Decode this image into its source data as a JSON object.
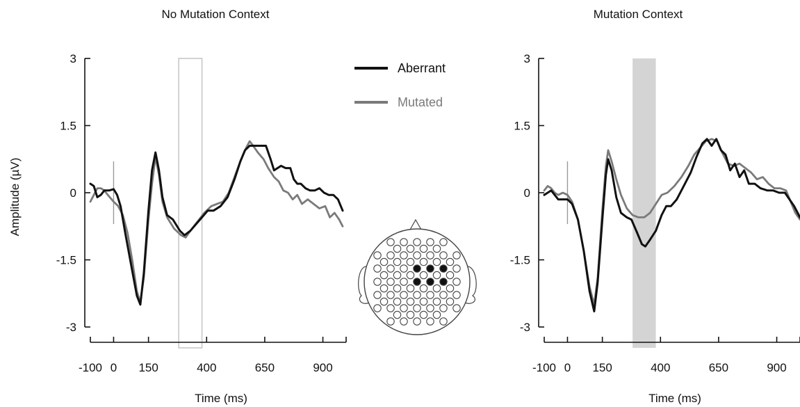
{
  "figure": {
    "ylabel": "Amplitude (µV)",
    "legend": [
      {
        "name": "Aberrant",
        "color": "#111111"
      },
      {
        "name": "Mutated",
        "color": "#7a7a7a"
      }
    ]
  },
  "chart_data": [
    {
      "type": "line",
      "title": "No Mutation Context",
      "xlabel": "Time (ms)",
      "ylabel": "Amplitude (µV)",
      "xlim": [
        -100,
        1000
      ],
      "ylim": [
        -3,
        3
      ],
      "xticks": [
        -100,
        0,
        150,
        400,
        650,
        900
      ],
      "yticks": [
        3,
        1.5,
        0,
        -1.5,
        -3
      ],
      "window": {
        "x0": 280,
        "x1": 380,
        "style": "outline"
      },
      "series": [
        {
          "name": "Aberrant",
          "color": "#111111",
          "points": [
            [
              -100,
              0.2
            ],
            [
              -85,
              0.15
            ],
            [
              -70,
              -0.1
            ],
            [
              -55,
              -0.05
            ],
            [
              -40,
              0.05
            ],
            [
              -20,
              0.05
            ],
            [
              0,
              0.08
            ],
            [
              15,
              -0.05
            ],
            [
              30,
              -0.3
            ],
            [
              50,
              -0.9
            ],
            [
              75,
              -1.6
            ],
            [
              100,
              -2.3
            ],
            [
              115,
              -2.5
            ],
            [
              130,
              -1.8
            ],
            [
              150,
              -0.4
            ],
            [
              165,
              0.5
            ],
            [
              180,
              0.9
            ],
            [
              195,
              0.5
            ],
            [
              210,
              -0.1
            ],
            [
              230,
              -0.5
            ],
            [
              255,
              -0.6
            ],
            [
              285,
              -0.85
            ],
            [
              305,
              -0.95
            ],
            [
              330,
              -0.85
            ],
            [
              355,
              -0.7
            ],
            [
              380,
              -0.55
            ],
            [
              405,
              -0.4
            ],
            [
              430,
              -0.4
            ],
            [
              460,
              -0.3
            ],
            [
              490,
              -0.1
            ],
            [
              520,
              0.3
            ],
            [
              545,
              0.7
            ],
            [
              565,
              0.95
            ],
            [
              585,
              1.05
            ],
            [
              610,
              1.05
            ],
            [
              635,
              1.05
            ],
            [
              655,
              1.05
            ],
            [
              675,
              0.75
            ],
            [
              690,
              0.5
            ],
            [
              705,
              0.55
            ],
            [
              720,
              0.6
            ],
            [
              740,
              0.55
            ],
            [
              760,
              0.55
            ],
            [
              775,
              0.3
            ],
            [
              790,
              0.2
            ],
            [
              805,
              0.2
            ],
            [
              825,
              0.1
            ],
            [
              845,
              0.05
            ],
            [
              865,
              0.05
            ],
            [
              885,
              0.1
            ],
            [
              905,
              0.0
            ],
            [
              925,
              -0.05
            ],
            [
              945,
              -0.05
            ],
            [
              965,
              -0.15
            ],
            [
              985,
              -0.4
            ]
          ]
        },
        {
          "name": "Mutated",
          "color": "#7a7a7a",
          "points": [
            [
              -100,
              -0.2
            ],
            [
              -85,
              -0.05
            ],
            [
              -70,
              0.1
            ],
            [
              -55,
              0.1
            ],
            [
              -40,
              0.05
            ],
            [
              -25,
              -0.05
            ],
            [
              0,
              -0.2
            ],
            [
              20,
              -0.3
            ],
            [
              40,
              -0.5
            ],
            [
              60,
              -0.9
            ],
            [
              80,
              -1.5
            ],
            [
              100,
              -2.2
            ],
            [
              115,
              -2.45
            ],
            [
              130,
              -1.9
            ],
            [
              150,
              -0.6
            ],
            [
              165,
              0.2
            ],
            [
              180,
              0.8
            ],
            [
              195,
              0.4
            ],
            [
              210,
              -0.2
            ],
            [
              230,
              -0.55
            ],
            [
              260,
              -0.8
            ],
            [
              290,
              -0.95
            ],
            [
              310,
              -1.0
            ],
            [
              330,
              -0.85
            ],
            [
              360,
              -0.65
            ],
            [
              390,
              -0.45
            ],
            [
              420,
              -0.3
            ],
            [
              445,
              -0.25
            ],
            [
              470,
              -0.2
            ],
            [
              495,
              0.0
            ],
            [
              520,
              0.35
            ],
            [
              545,
              0.7
            ],
            [
              570,
              1.0
            ],
            [
              585,
              1.15
            ],
            [
              600,
              1.05
            ],
            [
              620,
              0.9
            ],
            [
              645,
              0.75
            ],
            [
              665,
              0.55
            ],
            [
              690,
              0.35
            ],
            [
              710,
              0.25
            ],
            [
              730,
              0.05
            ],
            [
              750,
              0.0
            ],
            [
              770,
              -0.15
            ],
            [
              790,
              -0.05
            ],
            [
              810,
              -0.25
            ],
            [
              835,
              -0.15
            ],
            [
              860,
              -0.25
            ],
            [
              885,
              -0.35
            ],
            [
              910,
              -0.3
            ],
            [
              930,
              -0.55
            ],
            [
              950,
              -0.45
            ],
            [
              970,
              -0.6
            ],
            [
              985,
              -0.75
            ]
          ]
        }
      ]
    },
    {
      "type": "line",
      "title": "Mutation Context",
      "xlabel": "Time (ms)",
      "ylabel": "",
      "xlim": [
        -100,
        1000
      ],
      "ylim": [
        -3,
        3
      ],
      "xticks": [
        -100,
        0,
        150,
        400,
        650,
        900
      ],
      "yticks": [
        3,
        1.5,
        0,
        -1.5,
        -3
      ],
      "window": {
        "x0": 280,
        "x1": 380,
        "style": "filled"
      },
      "series": [
        {
          "name": "Aberrant",
          "color": "#111111",
          "points": [
            [
              -100,
              -0.05
            ],
            [
              -85,
              0.0
            ],
            [
              -70,
              0.05
            ],
            [
              -55,
              -0.05
            ],
            [
              -40,
              -0.15
            ],
            [
              -20,
              -0.15
            ],
            [
              0,
              -0.15
            ],
            [
              20,
              -0.25
            ],
            [
              45,
              -0.6
            ],
            [
              70,
              -1.3
            ],
            [
              95,
              -2.2
            ],
            [
              115,
              -2.65
            ],
            [
              130,
              -2.0
            ],
            [
              150,
              -0.6
            ],
            [
              165,
              0.4
            ],
            [
              175,
              0.75
            ],
            [
              190,
              0.5
            ],
            [
              210,
              -0.1
            ],
            [
              230,
              -0.45
            ],
            [
              255,
              -0.55
            ],
            [
              275,
              -0.6
            ],
            [
              300,
              -0.9
            ],
            [
              320,
              -1.15
            ],
            [
              335,
              -1.2
            ],
            [
              355,
              -1.05
            ],
            [
              380,
              -0.85
            ],
            [
              405,
              -0.5
            ],
            [
              425,
              -0.3
            ],
            [
              445,
              -0.3
            ],
            [
              470,
              -0.15
            ],
            [
              500,
              0.15
            ],
            [
              530,
              0.45
            ],
            [
              555,
              0.8
            ],
            [
              580,
              1.1
            ],
            [
              600,
              1.2
            ],
            [
              620,
              1.05
            ],
            [
              640,
              1.2
            ],
            [
              660,
              0.95
            ],
            [
              680,
              0.85
            ],
            [
              700,
              0.5
            ],
            [
              720,
              0.65
            ],
            [
              740,
              0.35
            ],
            [
              760,
              0.5
            ],
            [
              780,
              0.2
            ],
            [
              805,
              0.2
            ],
            [
              830,
              0.1
            ],
            [
              860,
              0.05
            ],
            [
              885,
              0.05
            ],
            [
              910,
              0.0
            ],
            [
              935,
              0.0
            ],
            [
              955,
              -0.15
            ],
            [
              975,
              -0.3
            ],
            [
              1000,
              -0.55
            ]
          ]
        },
        {
          "name": "Mutated",
          "color": "#7a7a7a",
          "points": [
            [
              -100,
              0.05
            ],
            [
              -85,
              0.15
            ],
            [
              -70,
              0.1
            ],
            [
              -55,
              0.0
            ],
            [
              -40,
              -0.05
            ],
            [
              -20,
              0.0
            ],
            [
              0,
              -0.05
            ],
            [
              20,
              -0.2
            ],
            [
              45,
              -0.6
            ],
            [
              70,
              -1.3
            ],
            [
              95,
              -2.1
            ],
            [
              115,
              -2.5
            ],
            [
              130,
              -1.9
            ],
            [
              150,
              -0.4
            ],
            [
              165,
              0.6
            ],
            [
              175,
              0.95
            ],
            [
              190,
              0.7
            ],
            [
              210,
              0.3
            ],
            [
              230,
              -0.05
            ],
            [
              255,
              -0.35
            ],
            [
              280,
              -0.5
            ],
            [
              305,
              -0.55
            ],
            [
              330,
              -0.55
            ],
            [
              355,
              -0.45
            ],
            [
              380,
              -0.25
            ],
            [
              405,
              -0.05
            ],
            [
              430,
              0.0
            ],
            [
              460,
              0.15
            ],
            [
              490,
              0.35
            ],
            [
              520,
              0.6
            ],
            [
              545,
              0.85
            ],
            [
              570,
              1.0
            ],
            [
              595,
              1.15
            ],
            [
              620,
              1.2
            ],
            [
              645,
              1.15
            ],
            [
              665,
              0.9
            ],
            [
              690,
              0.65
            ],
            [
              715,
              0.6
            ],
            [
              740,
              0.65
            ],
            [
              765,
              0.55
            ],
            [
              790,
              0.45
            ],
            [
              815,
              0.3
            ],
            [
              840,
              0.35
            ],
            [
              865,
              0.2
            ],
            [
              890,
              0.1
            ],
            [
              915,
              0.1
            ],
            [
              940,
              0.05
            ],
            [
              960,
              -0.2
            ],
            [
              980,
              -0.45
            ],
            [
              1000,
              -0.6
            ]
          ]
        }
      ]
    }
  ]
}
